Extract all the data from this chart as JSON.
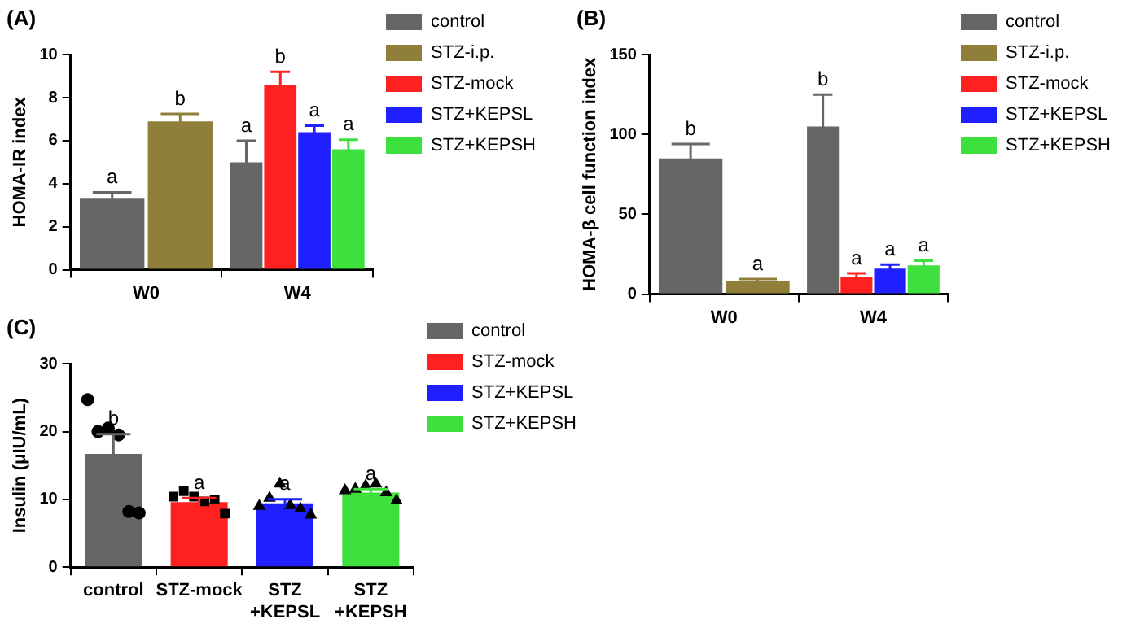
{
  "chart_data": [
    {
      "type": "bar",
      "title": "(A)",
      "ylabel": "HOMA-IR index",
      "categories": [
        "W0",
        "W4"
      ],
      "ylim": [
        0,
        10
      ],
      "yticks": [
        0,
        2,
        4,
        6,
        8,
        10
      ],
      "legend": "right",
      "grid": false,
      "series": [
        {
          "name": "control",
          "color": "#666666",
          "values": [
            3.3,
            5.0
          ],
          "errors": [
            0.3,
            1.0
          ],
          "value_labels": [
            "a",
            "a"
          ]
        },
        {
          "name": "STZ-i.p.",
          "color": "#8f7f3a",
          "values": [
            6.9,
            null
          ],
          "errors": [
            0.35,
            null
          ],
          "value_labels": [
            "b",
            null
          ]
        },
        {
          "name": "STZ-mock",
          "color": "#ff2020",
          "values": [
            null,
            8.6
          ],
          "errors": [
            null,
            0.6
          ],
          "value_labels": [
            null,
            "b"
          ]
        },
        {
          "name": "STZ+KEPSL",
          "color": "#1f1fff",
          "values": [
            null,
            6.4
          ],
          "errors": [
            null,
            0.3
          ],
          "value_labels": [
            null,
            "a"
          ]
        },
        {
          "name": "STZ+KEPSH",
          "color": "#3de03d",
          "values": [
            null,
            5.6
          ],
          "errors": [
            null,
            0.45
          ],
          "value_labels": [
            null,
            "a"
          ]
        }
      ]
    },
    {
      "type": "bar",
      "title": "(B)",
      "ylabel": "HOMA-β cell function index",
      "categories": [
        "W0",
        "W4"
      ],
      "ylim": [
        0,
        150
      ],
      "yticks": [
        0,
        50,
        100,
        150
      ],
      "legend": "right",
      "grid": false,
      "series": [
        {
          "name": "control",
          "color": "#666666",
          "values": [
            85,
            105
          ],
          "errors": [
            9,
            20
          ],
          "value_labels": [
            "b",
            "b"
          ]
        },
        {
          "name": "STZ-i.p.",
          "color": "#8f7f3a",
          "values": [
            8,
            null
          ],
          "errors": [
            1.5,
            null
          ],
          "value_labels": [
            "a",
            null
          ]
        },
        {
          "name": "STZ-mock",
          "color": "#ff2020",
          "values": [
            null,
            11
          ],
          "errors": [
            null,
            2
          ],
          "value_labels": [
            null,
            "a"
          ]
        },
        {
          "name": "STZ+KEPSL",
          "color": "#1f1fff",
          "values": [
            null,
            16
          ],
          "errors": [
            null,
            2.5
          ],
          "value_labels": [
            null,
            "a"
          ]
        },
        {
          "name": "STZ+KEPSH",
          "color": "#3de03d",
          "values": [
            null,
            18
          ],
          "errors": [
            null,
            3
          ],
          "value_labels": [
            null,
            "a"
          ]
        }
      ]
    },
    {
      "type": "bar",
      "title": "(C)",
      "ylabel": "Insulin (μIU/mL)",
      "categories": [
        "control",
        "STZ-mock",
        "STZ\n+KEPSL",
        "STZ\n+KEPSH"
      ],
      "ylim": [
        0,
        30
      ],
      "yticks": [
        0,
        10,
        20,
        30
      ],
      "legend": "right",
      "grid": false,
      "series": [
        {
          "name": "control",
          "color": "#666666",
          "values": [
            16.7,
            null,
            null,
            null
          ],
          "errors": [
            2.9,
            null,
            null,
            null
          ],
          "value_labels": [
            "b",
            null,
            null,
            null
          ]
        },
        {
          "name": "STZ-mock",
          "color": "#ff2020",
          "values": [
            null,
            9.6,
            null,
            null
          ],
          "errors": [
            null,
            0.6,
            null,
            null
          ],
          "value_labels": [
            null,
            "a",
            null,
            null
          ]
        },
        {
          "name": "STZ+KEPSL",
          "color": "#1f1fff",
          "values": [
            null,
            null,
            9.4,
            null
          ],
          "errors": [
            null,
            null,
            0.6,
            null
          ],
          "value_labels": [
            null,
            null,
            "a",
            null
          ]
        },
        {
          "name": "STZ+KEPSH",
          "color": "#3de03d",
          "values": [
            null,
            null,
            null,
            11.0
          ],
          "errors": [
            null,
            null,
            null,
            0.5
          ],
          "value_labels": [
            null,
            null,
            null,
            "a"
          ]
        },
        {
          "type": "scatter",
          "color": "#000000",
          "marker": "circle",
          "x": [
            "control",
            "control",
            "control",
            "control",
            "control",
            "control"
          ],
          "values": [
            24.7,
            20.0,
            20.5,
            19.5,
            8.2,
            8.0
          ]
        },
        {
          "type": "scatter",
          "color": "#000000",
          "marker": "square",
          "x": [
            "STZ-mock",
            "STZ-mock",
            "STZ-mock",
            "STZ-mock",
            "STZ-mock",
            "STZ-mock"
          ],
          "values": [
            10.4,
            11.2,
            10.4,
            9.7,
            10.0,
            7.9
          ]
        },
        {
          "type": "scatter",
          "color": "#000000",
          "marker": "triangle",
          "x": [
            "STZ\n+KEPSL",
            "STZ\n+KEPSL",
            "STZ\n+KEPSL",
            "STZ\n+KEPSL",
            "STZ\n+KEPSL",
            "STZ\n+KEPSL"
          ],
          "values": [
            9.0,
            10.2,
            12.3,
            9.1,
            8.6,
            7.7
          ]
        },
        {
          "type": "scatter",
          "color": "#000000",
          "marker": "triangle",
          "x": [
            "STZ\n+KEPSH",
            "STZ\n+KEPSH",
            "STZ\n+KEPSH",
            "STZ\n+KEPSH",
            "STZ\n+KEPSH",
            "STZ\n+KEPSH"
          ],
          "values": [
            11.3,
            11.5,
            12.0,
            12.3,
            11.0,
            9.8
          ]
        }
      ]
    }
  ]
}
